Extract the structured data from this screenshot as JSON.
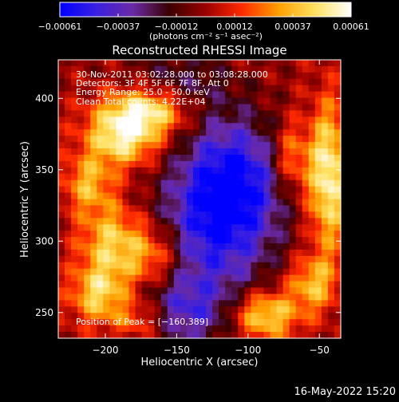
{
  "chart_data": {
    "type": "heatmap",
    "title": "Reconstructed RHESSI Image",
    "xlabel": "Heliocentric X (arcsec)",
    "ylabel": "Heliocentric Y (arcsec)",
    "xlim": [
      -233,
      -35
    ],
    "ylim": [
      232,
      427
    ],
    "xticks": [
      -200,
      -150,
      -100,
      -50
    ],
    "xtick_labels": [
      "−200",
      "−150",
      "−100",
      "−50"
    ],
    "yticks": [
      250,
      300,
      350,
      400
    ],
    "ytick_labels": [
      "250",
      "300",
      "350",
      "400"
    ],
    "colorbar": {
      "min": -0.00061,
      "max": 0.00061,
      "ticks": [
        "−0.00061",
        "−0.00037",
        "−0.00012",
        "0.00012",
        "0.00037",
        "0.00061"
      ],
      "unit_label": "(photons cm⁻² s⁻¹ asec⁻²)",
      "colors": [
        "#0000ff",
        "#3a20e0",
        "#6a2aa6",
        "#3a0000",
        "#9a0000",
        "#ff2a00",
        "#ff9f00",
        "#ffe060",
        "#ffffff"
      ]
    },
    "annotations": {
      "time_range": "30‑Nov‑2011 03:02:28.000 to 03:08:28.000",
      "detectors": "Detectors: 3F 4F 5F 6F 7F 8F, Att 0",
      "energy": "Energy Range: 25.0 ‑ 50.0 keV",
      "clean": "Clean    Total counts: 4.22E+04",
      "peak": "Position of Peak = [−160,389]"
    },
    "peak_position": [
      -160,
      389
    ],
    "sources": [
      {
        "x": -168,
        "y": 392,
        "amp": 1.0,
        "sx": 22,
        "sy": 12
      },
      {
        "x": -188,
        "y": 372,
        "amp": 0.85,
        "sx": 18,
        "sy": 14
      },
      {
        "x": -212,
        "y": 340,
        "amp": 0.55,
        "sx": 12,
        "sy": 14
      },
      {
        "x": -44,
        "y": 345,
        "amp": 0.95,
        "sx": 10,
        "sy": 35
      },
      {
        "x": -70,
        "y": 358,
        "amp": 0.55,
        "sx": 9,
        "sy": 18
      },
      {
        "x": -195,
        "y": 298,
        "amp": 0.7,
        "sx": 16,
        "sy": 20
      },
      {
        "x": -165,
        "y": 290,
        "amp": 0.55,
        "sx": 14,
        "sy": 16
      },
      {
        "x": -205,
        "y": 262,
        "amp": 0.65,
        "sx": 14,
        "sy": 14
      },
      {
        "x": -88,
        "y": 248,
        "amp": 0.8,
        "sx": 16,
        "sy": 12
      },
      {
        "x": -55,
        "y": 270,
        "amp": 0.6,
        "sx": 12,
        "sy": 14
      },
      {
        "x": -175,
        "y": 245,
        "amp": 0.45,
        "sx": 14,
        "sy": 10
      },
      {
        "x": -125,
        "y": 305,
        "amp": -0.7,
        "sx": 30,
        "sy": 35
      },
      {
        "x": -110,
        "y": 345,
        "amp": -0.8,
        "sx": 25,
        "sy": 30
      },
      {
        "x": -145,
        "y": 250,
        "amp": -0.55,
        "sx": 22,
        "sy": 18
      },
      {
        "x": -150,
        "y": 405,
        "amp": -0.45,
        "sx": 25,
        "sy": 18
      }
    ]
  },
  "footer": {
    "date": "16‑May‑2022 15:20"
  }
}
